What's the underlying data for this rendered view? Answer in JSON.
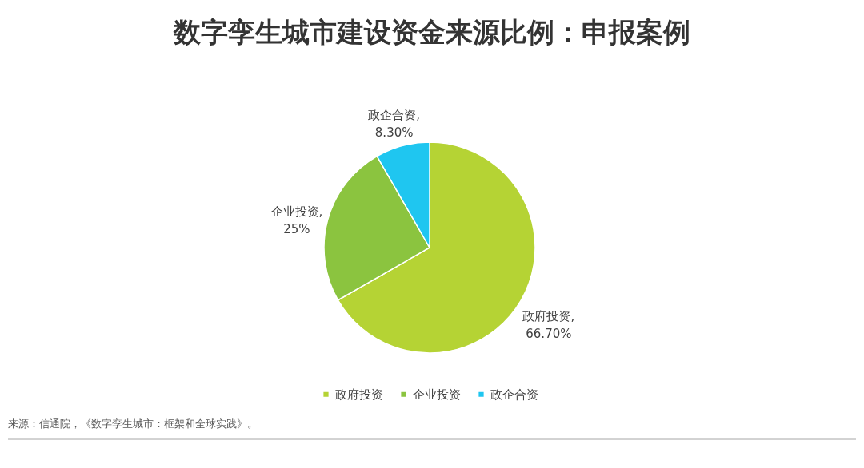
{
  "chart_data": {
    "type": "pie",
    "title": "数字孪生城市建设资金来源比例：申报案例",
    "categories": [
      "政府投资",
      "企业投资",
      "政企合资"
    ],
    "values": [
      66.7,
      25,
      8.3
    ],
    "value_labels": [
      "政府投资, 66.70%",
      "企业投资, 25%",
      "政企合资, 8.30%"
    ],
    "colors": [
      "#b5d334",
      "#8bc43f",
      "#1fc6f0"
    ],
    "legend": "bottom",
    "annotations": [
      "来源：信通院，《数字孪生城市：框架和全球实践》。"
    ]
  }
}
